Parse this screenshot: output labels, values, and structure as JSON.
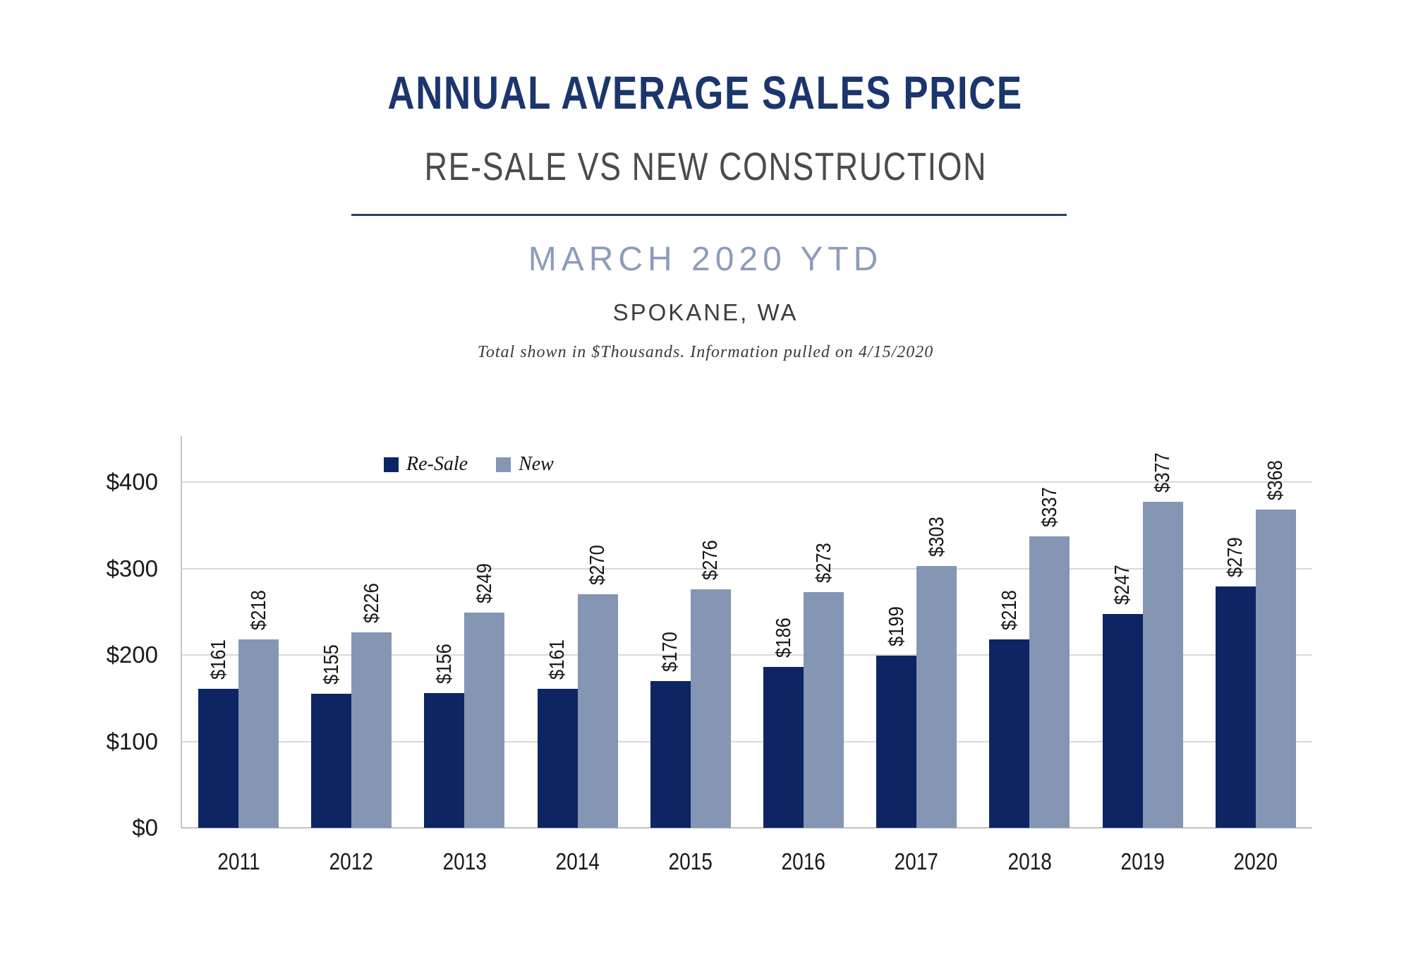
{
  "header": {
    "title": "ANNUAL AVERAGE SALES PRICE",
    "subtitle": "RE-SALE VS NEW CONSTRUCTION",
    "period": "MARCH 2020 YTD",
    "location": "SPOKANE, WA",
    "note": "Total shown in $Thousands. Information pulled on 4/15/2020"
  },
  "colors": {
    "title_navy": "#1b356d",
    "divider_navy": "#26406f",
    "period_blue": "#8d9cba",
    "resale_bar": "#0e2563",
    "new_bar": "#8496b3",
    "gridline": "#d9d9d9"
  },
  "chart_data": {
    "type": "bar",
    "categories": [
      "2011",
      "2012",
      "2013",
      "2014",
      "2015",
      "2016",
      "2017",
      "2018",
      "2019",
      "2020"
    ],
    "series": [
      {
        "name": "Re-Sale",
        "color": "#0e2563",
        "values": [
          161,
          155,
          156,
          161,
          170,
          186,
          199,
          218,
          247,
          279
        ]
      },
      {
        "name": "New",
        "color": "#8496b3",
        "values": [
          218,
          226,
          249,
          270,
          276,
          273,
          303,
          337,
          377,
          368
        ]
      }
    ],
    "value_prefix": "$",
    "data_labels": "rotated 90deg, shown above each bar",
    "ytick_labels": [
      "$0",
      "$100",
      "$200",
      "$300",
      "$400"
    ],
    "ytick_values": [
      0,
      100,
      200,
      300,
      400
    ],
    "ylim": [
      0,
      450
    ],
    "grid": true,
    "legend_position": "inside top-left",
    "title": "ANNUAL AVERAGE SALES PRICE",
    "subtitle": "RE-SALE VS NEW CONSTRUCTION — MARCH 2020 YTD, SPOKANE, WA",
    "xlabel": "",
    "ylabel": ""
  }
}
